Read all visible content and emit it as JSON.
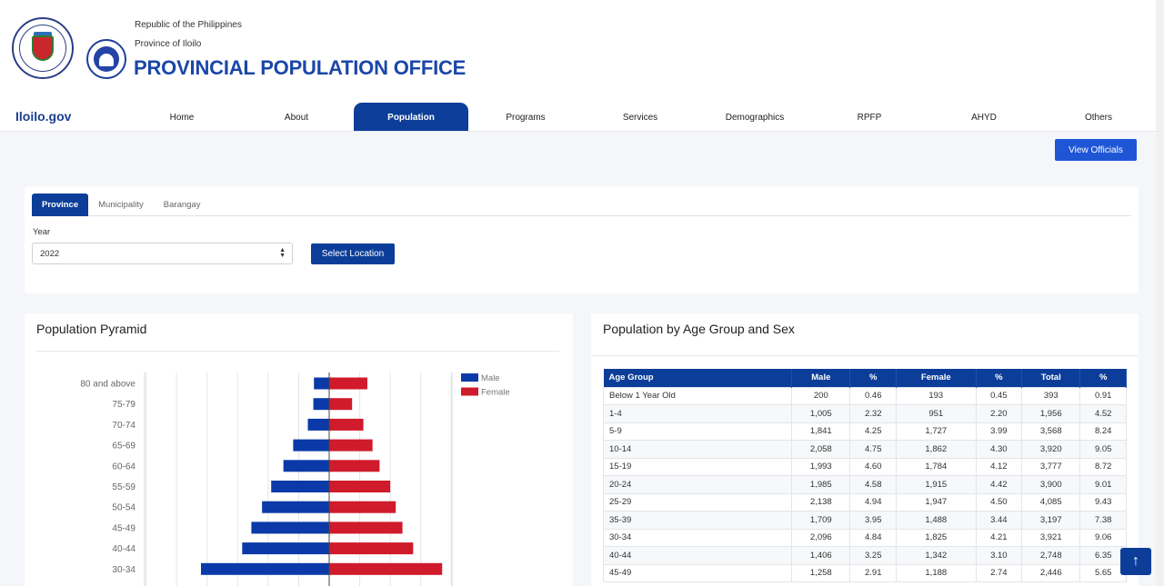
{
  "header": {
    "line1": "Republic of the Philippines",
    "line2": "Province of Iloilo",
    "title": "PROVINCIAL POPULATION OFFICE"
  },
  "brand": "Iloilo.gov",
  "nav": [
    "Home",
    "About",
    "Population",
    "Programs",
    "Services",
    "Demographics",
    "RPFP",
    "AHYD",
    "Others"
  ],
  "nav_active": "Population",
  "view_officials": "View Officials",
  "filter": {
    "tabs": [
      "Province",
      "Municipality",
      "Barangay"
    ],
    "active_tab": "Province",
    "year_label": "Year",
    "year_value": "2022",
    "select_location": "Select Location"
  },
  "pyramid": {
    "title": "Population Pyramid"
  },
  "chart_data": {
    "type": "bar",
    "orientation": "horizontal-pyramid",
    "categories": [
      "80 and above",
      "75-79",
      "70-74",
      "65-69",
      "60-64",
      "55-59",
      "50-54",
      "45-49",
      "40-44",
      "30-34"
    ],
    "series": [
      {
        "name": "Male",
        "color": "#0b3aa8",
        "values": [
          500,
          520,
          700,
          1180,
          1500,
          1900,
          2200,
          2550,
          2850,
          4200
        ]
      },
      {
        "name": "Female",
        "color": "#cf1b2b",
        "values": [
          1250,
          750,
          1120,
          1420,
          1650,
          2000,
          2180,
          2400,
          2750,
          3700
        ]
      }
    ],
    "legend_position": "top-right",
    "grid": true
  },
  "table": {
    "title": "Population by Age Group and Sex",
    "headers": [
      "Age Group",
      "Male",
      "%",
      "Female",
      "%",
      "Total",
      "%"
    ],
    "rows": [
      [
        "Below 1 Year Old",
        "200",
        "0.46",
        "193",
        "0.45",
        "393",
        "0.91"
      ],
      [
        "1-4",
        "1,005",
        "2.32",
        "951",
        "2.20",
        "1,956",
        "4.52"
      ],
      [
        "5-9",
        "1,841",
        "4.25",
        "1,727",
        "3.99",
        "3,568",
        "8.24"
      ],
      [
        "10-14",
        "2,058",
        "4.75",
        "1,862",
        "4.30",
        "3,920",
        "9.05"
      ],
      [
        "15-19",
        "1,993",
        "4.60",
        "1,784",
        "4.12",
        "3,777",
        "8.72"
      ],
      [
        "20-24",
        "1,985",
        "4.58",
        "1,915",
        "4.42",
        "3,900",
        "9.01"
      ],
      [
        "25-29",
        "2,138",
        "4.94",
        "1,947",
        "4.50",
        "4,085",
        "9.43"
      ],
      [
        "35-39",
        "1,709",
        "3.95",
        "1,488",
        "3.44",
        "3,197",
        "7.38"
      ],
      [
        "30-34",
        "2,096",
        "4.84",
        "1,825",
        "4.21",
        "3,921",
        "9.06"
      ],
      [
        "40-44",
        "1,406",
        "3.25",
        "1,342",
        "3.10",
        "2,748",
        "6.35"
      ],
      [
        "45-49",
        "1,258",
        "2.91",
        "1,188",
        "2.74",
        "2,446",
        "5.65"
      ]
    ]
  },
  "colors": {
    "primary": "#0c3e99",
    "accent": "#1f56d6",
    "male": "#0b3aa8",
    "female": "#cf1b2b"
  },
  "icons": {
    "back_to_top": "arrow-up-icon"
  }
}
